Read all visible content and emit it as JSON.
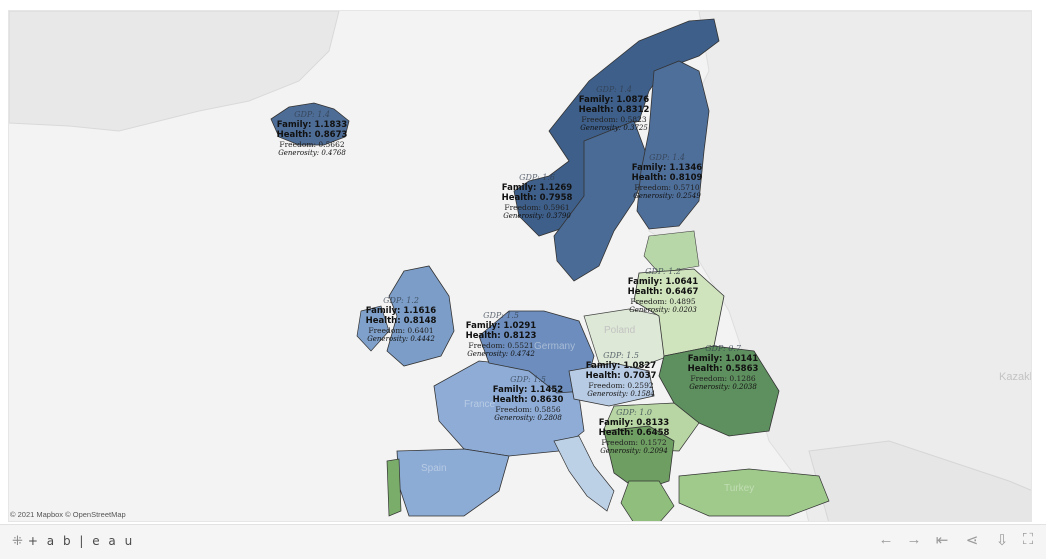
{
  "attribution": "© 2021 Mapbox © OpenStreetMap",
  "brand": {
    "mark": "⁜",
    "text": "+ a b | e a u"
  },
  "toolbar": {
    "undo": "←",
    "redo": "→",
    "revert": "⇤",
    "share": "⋖",
    "download": "⇩",
    "fullscreen": "⛶"
  },
  "ghost_labels": {
    "kazakhstan": "Kazakhs",
    "poland": "Poland",
    "germany": "Germany",
    "france": "France",
    "spain": "Spain",
    "turkey": "Turkey"
  },
  "countries": {
    "iceland": {
      "gdp": "GDP: 1.4",
      "family": "Family: 1.1833",
      "health": "Health: 0.8673",
      "freedom": "Freedom: 0.5662",
      "generosity": "Generosity: 0.4768",
      "color": "#4e6d96"
    },
    "norway": {
      "gdp": "GDP: 1.4",
      "family": "Family: 1.0876",
      "health": "Health: 0.8312",
      "freedom": "Freedom: 0.5823",
      "generosity": "Generosity: 0.3725",
      "color": "#3e5f8a"
    },
    "sweden": {
      "gdp": "GDP: 1.6",
      "family": "Family: 1.1269",
      "health": "Health: 0.7958",
      "freedom": "Freedom: 0.5961",
      "generosity": "Generosity: 0.3790",
      "color": "#4a6b96"
    },
    "finland": {
      "gdp": "GDP: 1.4",
      "family": "Family: 1.1346",
      "health": "Health: 0.8109",
      "freedom": "Freedom: 0.5710",
      "generosity": "Generosity: 0.2549",
      "color": "#4f6f9b"
    },
    "uk": {
      "gdp": "GDP: 1.2",
      "family": "Family: 1.1616",
      "health": "Health: 0.8148",
      "freedom": "Freedom: 0.6401",
      "generosity": "Generosity: 0.4442",
      "color": "#7b9dc8"
    },
    "germany": {
      "gdp": "GDP: 1.5",
      "family": "Family: 1.0291",
      "health": "Health: 0.8123",
      "freedom": "Freedom: 0.5521",
      "generosity": "Generosity: 0.4742",
      "color": "#6c8dbd"
    },
    "belarus": {
      "gdp": "GDP: 1.2",
      "family": "Family: 1.0641",
      "health": "Health: 0.6467",
      "freedom": "Freedom: 0.4895",
      "generosity": "Generosity: 0.0203",
      "color": "#cfe3bd"
    },
    "ukraine": {
      "gdp": "GDP: 0.7",
      "family": "Family: 1.0141",
      "health": "Health: 0.5863",
      "freedom": "Freedom: 0.1286",
      "generosity": "Generosity: 0.2038",
      "color": "#5e8f5e"
    },
    "austria": {
      "gdp": "GDP: 1.5",
      "family": "Family: 1.0827",
      "health": "Health: 0.7037",
      "freedom": "Freedom: 0.2592",
      "generosity": "Generosity: 0.1584",
      "color": "#b8cbe4"
    },
    "france": {
      "gdp": "GDP: 1.5",
      "family": "Family: 1.1452",
      "health": "Health: 0.8630",
      "freedom": "Freedom: 0.5856",
      "generosity": "Generosity: 0.2808",
      "color": "#8eacd6"
    },
    "serbia": {
      "gdp": "GDP: 1.0",
      "family": "Family: 0.8133",
      "health": "Health: 0.6458",
      "freedom": "Freedom: 0.1572",
      "generosity": "Generosity: 0.2094",
      "color": "#6f9e63"
    }
  }
}
